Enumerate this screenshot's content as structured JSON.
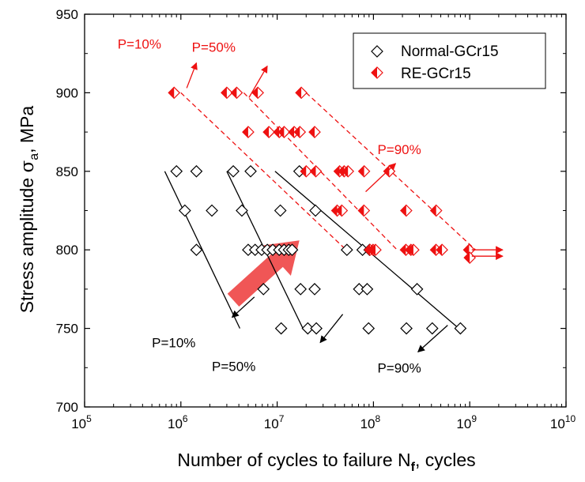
{
  "chart_data": {
    "type": "scatter",
    "title": "",
    "xlabel": "Number of cycles to failure N",
    "xlabel_sub": "f",
    "xlabel_suffix": ", cycles",
    "ylabel": "Stress amplitude ",
    "ylabel_sigma": "σ",
    "ylabel_sub": "a",
    "ylabel_suffix": ", MPa",
    "xscale": "log",
    "xlim": [
      100000,
      10000000000
    ],
    "ylim": [
      700,
      950
    ],
    "xticks": [
      {
        "value": 100000,
        "base": "10",
        "exp": "5"
      },
      {
        "value": 1000000,
        "base": "10",
        "exp": "6"
      },
      {
        "value": 10000000,
        "base": "10",
        "exp": "7"
      },
      {
        "value": 100000000,
        "base": "10",
        "exp": "8"
      },
      {
        "value": 1000000000,
        "base": "10",
        "exp": "9"
      },
      {
        "value": 10000000000,
        "base": "10",
        "exp": "10"
      }
    ],
    "yticks": [
      "700",
      "750",
      "800",
      "850",
      "900",
      "950"
    ],
    "legend_position": "top-right",
    "series": [
      {
        "name": "Normal-GCr15",
        "marker": "open-diamond",
        "color": "#000000",
        "points": [
          [
            900000,
            850
          ],
          [
            1450000,
            850
          ],
          [
            1100000,
            825
          ],
          [
            1450000,
            800
          ],
          [
            2100000,
            825
          ],
          [
            3500000,
            850
          ],
          [
            5300000,
            850
          ],
          [
            4300000,
            825
          ],
          [
            5000000,
            800
          ],
          [
            5900000,
            800
          ],
          [
            6900000,
            800
          ],
          [
            7900000,
            800
          ],
          [
            9000000,
            800
          ],
          [
            10500000,
            800
          ],
          [
            11800000,
            800
          ],
          [
            13200000,
            800
          ],
          [
            14300000,
            800
          ],
          [
            10800000,
            825
          ],
          [
            7200000,
            775
          ],
          [
            11000000,
            750
          ],
          [
            17500000,
            775
          ],
          [
            24500000,
            775
          ],
          [
            20800000,
            750
          ],
          [
            25500000,
            750
          ],
          [
            17000000,
            850
          ],
          [
            25000000,
            825
          ],
          [
            53000000,
            800
          ],
          [
            71000000,
            775
          ],
          [
            86000000,
            775
          ],
          [
            89000000,
            750
          ],
          [
            77000000,
            800
          ],
          [
            91000000,
            800
          ],
          [
            284000000,
            775
          ],
          [
            220000000,
            750
          ],
          [
            408000000,
            750
          ],
          [
            800000000,
            750
          ]
        ]
      },
      {
        "name": "RE-GCr15",
        "marker": "half-filled-diamond",
        "color": "#ee1111",
        "points": [
          [
            850000,
            900
          ],
          [
            3000000,
            900
          ],
          [
            3800000,
            900
          ],
          [
            6300000,
            900
          ],
          [
            17800000,
            900
          ],
          [
            5000000,
            875
          ],
          [
            8200000,
            875
          ],
          [
            10500000,
            875
          ],
          [
            11800000,
            875
          ],
          [
            15000000,
            875
          ],
          [
            17200000,
            875
          ],
          [
            24500000,
            875
          ],
          [
            20000000,
            850
          ],
          [
            25200000,
            850
          ],
          [
            44500000,
            850
          ],
          [
            49600000,
            850
          ],
          [
            54400000,
            850
          ],
          [
            80000000,
            850
          ],
          [
            146000000,
            850
          ],
          [
            42000000,
            825
          ],
          [
            46900000,
            825
          ],
          [
            79600000,
            825
          ],
          [
            219000000,
            825
          ],
          [
            448000000,
            825
          ],
          [
            92000000,
            800
          ],
          [
            99000000,
            800
          ],
          [
            105000000,
            800
          ],
          [
            217000000,
            800
          ],
          [
            245000000,
            800
          ],
          [
            260000000,
            800
          ],
          [
            446000000,
            800
          ],
          [
            515000000,
            800
          ],
          [
            985000000,
            800
          ],
          [
            1000000000,
            795
          ]
        ]
      }
    ],
    "fit_lines": [
      {
        "label": "P=10%",
        "color": "#000000",
        "style": "solid",
        "from": [
          680000,
          850
        ],
        "to": [
          4100000,
          750
        ]
      },
      {
        "label": "P=50%",
        "color": "#000000",
        "style": "solid",
        "from": [
          3000000,
          850
        ],
        "to": [
          18500000,
          750
        ]
      },
      {
        "label": "P=90%",
        "color": "#000000",
        "style": "solid",
        "from": [
          9500000,
          850
        ],
        "to": [
          770000000,
          750
        ]
      },
      {
        "label": "P=10%",
        "color": "#ee1111",
        "style": "dashed",
        "from": [
          1000000,
          900
        ],
        "to": [
          52000000,
          800
        ]
      },
      {
        "label": "P=50%",
        "color": "#ee1111",
        "style": "dashed",
        "from": [
          4500000,
          900
        ],
        "to": [
          176000000,
          800
        ]
      },
      {
        "label": "P=90%",
        "color": "#ee1111",
        "style": "dashed",
        "from": [
          20000000,
          900
        ],
        "to": [
          1150000000,
          800
        ]
      }
    ],
    "annotations": [
      {
        "text": "P=10%",
        "color": "#ee1111",
        "text_at": [
          220000,
          928
        ],
        "arrow_from": [
          1150000,
          903
        ],
        "arrow_to": [
          1450000,
          919
        ]
      },
      {
        "text": "P=50%",
        "color": "#ee1111",
        "text_at": [
          1300000,
          926
        ],
        "arrow_from": [
          5100000,
          897
        ],
        "arrow_to": [
          7900000,
          917
        ]
      },
      {
        "text": "P=90%",
        "color": "#ee1111",
        "text_at": [
          110000000,
          861
        ],
        "arrow_from": [
          83000000,
          837
        ],
        "arrow_to": [
          170000000,
          855
        ]
      },
      {
        "text": "P=10%",
        "color": "#000000",
        "text_at": [
          500000,
          738
        ],
        "arrow_from": [
          5800000,
          770
        ],
        "arrow_to": [
          3400000,
          757
        ]
      },
      {
        "text": "P=50%",
        "color": "#000000",
        "text_at": [
          2100000,
          723
        ],
        "arrow_from": [
          48000000,
          759
        ],
        "arrow_to": [
          28000000,
          741
        ]
      },
      {
        "text": "P=90%",
        "color": "#000000",
        "text_at": [
          110000000,
          722
        ],
        "arrow_from": [
          590000000,
          752
        ],
        "arrow_to": [
          290000000,
          735
        ]
      }
    ],
    "runouts": [
      {
        "color": "#ee1111",
        "from": [
          1050000000,
          800
        ],
        "to": [
          2200000000,
          800
        ]
      },
      {
        "color": "#ee1111",
        "from": [
          1050000000,
          796
        ],
        "to": [
          2200000000,
          796
        ]
      }
    ],
    "trend_arrow": {
      "color": "#ee4444",
      "from": [
        3500000,
        768
      ],
      "to": [
        17000000,
        806
      ],
      "meaning": "improvement"
    }
  }
}
